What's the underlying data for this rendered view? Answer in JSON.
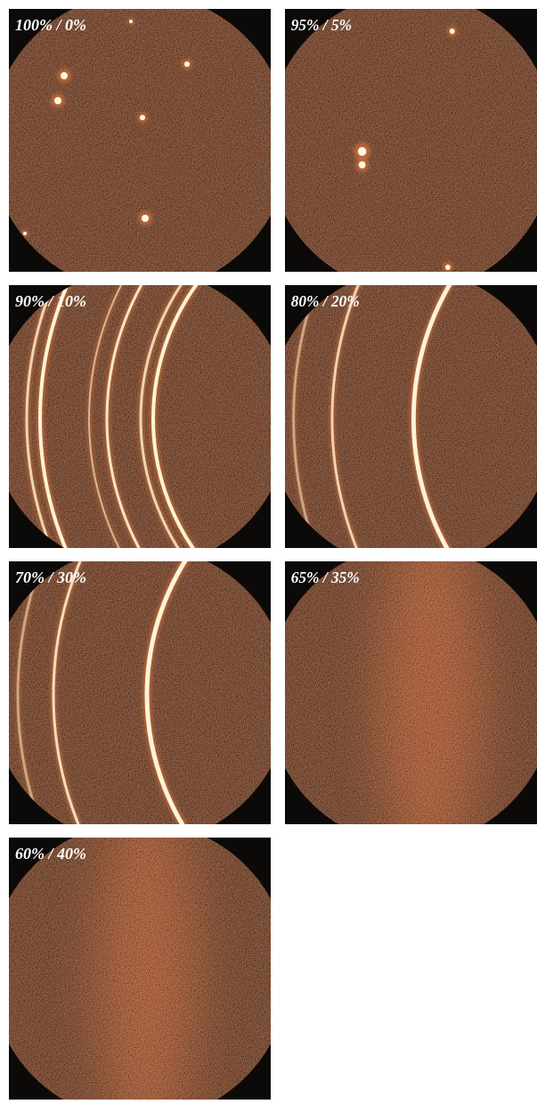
{
  "figure": {
    "panels": [
      {
        "label": "100% / 0%"
      },
      {
        "label": "95% / 5%"
      },
      {
        "label": "90% / 10%"
      },
      {
        "label": "80% / 20%"
      },
      {
        "label": "70% / 30%"
      },
      {
        "label": "65% / 35%"
      },
      {
        "label": "60% / 40%"
      }
    ]
  }
}
